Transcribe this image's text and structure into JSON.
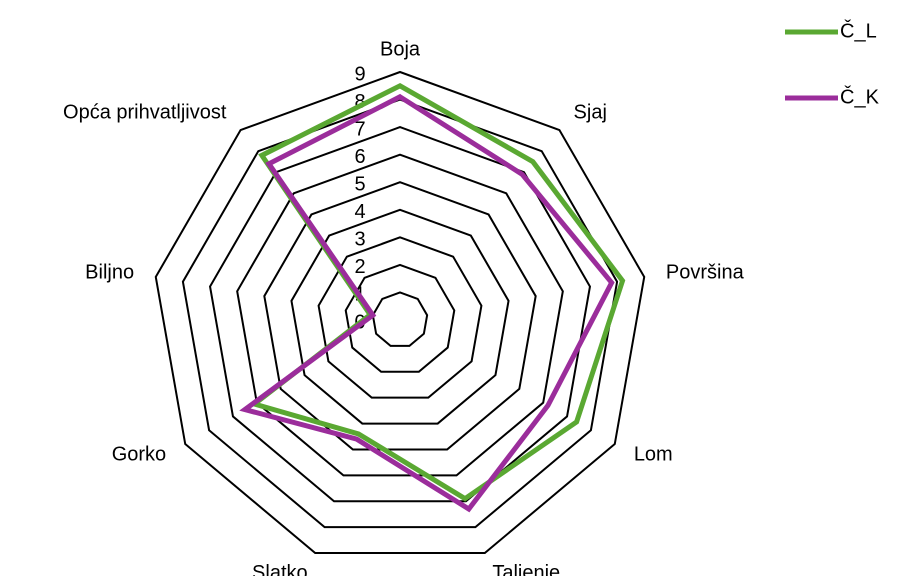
{
  "chart_data": {
    "type": "radar",
    "categories": [
      "Boja",
      "Sjaj",
      "Površina",
      "Lom",
      "Taljenje",
      "Slatko",
      "Gorko",
      "Biljno",
      "Opća prihvatljivost"
    ],
    "series": [
      {
        "name": "Č_L",
        "color": "#5aa832",
        "values": [
          8.5,
          7.5,
          8.2,
          7.4,
          6.9,
          4.4,
          6.1,
          1.1,
          7.8
        ]
      },
      {
        "name": "Č_K",
        "color": "#9b2d9b",
        "values": [
          8.1,
          6.9,
          7.8,
          6.2,
          7.3,
          4.6,
          6.5,
          1.0,
          7.4
        ]
      }
    ],
    "ylim": [
      0,
      9
    ],
    "yticks": [
      0,
      1,
      2,
      3,
      4,
      5,
      6,
      7,
      8,
      9
    ],
    "grid": true,
    "legend": "top-right"
  }
}
